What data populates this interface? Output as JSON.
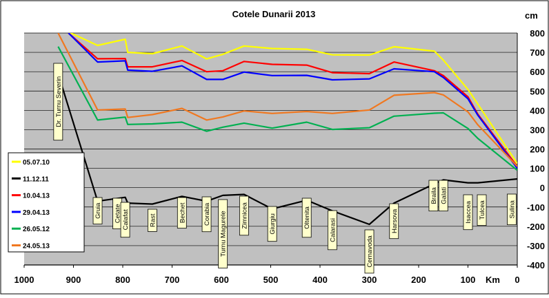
{
  "chart_data": {
    "type": "line",
    "title": "Cotele Dunarii 2013",
    "xlabel": "Km",
    "ylabel": "cm",
    "xlim": [
      1000,
      0
    ],
    "ylim": [
      -400,
      800
    ],
    "x_ticks": [
      1000,
      900,
      800,
      700,
      600,
      500,
      400,
      300,
      200,
      100,
      0
    ],
    "y_ticks": [
      -400,
      -300,
      -200,
      -100,
      0,
      100,
      200,
      300,
      400,
      500,
      600,
      700,
      800
    ],
    "grid": "horizontal",
    "plot_background": "#c0c0c0",
    "legend_position": "left",
    "series": [
      {
        "name": "05.07.10",
        "color": "#ffff00",
        "x": [
          922,
          851,
          795,
          790,
          740,
          680,
          630,
          597,
          554,
          497,
          427,
          375,
          300,
          250,
          168,
          150,
          100,
          80,
          0
        ],
        "values": [
          820,
          736,
          768,
          700,
          693,
          733,
          666,
          690,
          733,
          720,
          716,
          687,
          686,
          729,
          706,
          660,
          508,
          432,
          125
        ]
      },
      {
        "name": "11.12.11",
        "color": "#000000",
        "x": [
          931,
          851,
          795,
          790,
          740,
          680,
          630,
          597,
          554,
          497,
          427,
          375,
          300,
          250,
          168,
          150,
          100,
          80,
          0
        ],
        "values": [
          590,
          -70,
          -50,
          -80,
          -85,
          -45,
          -70,
          -40,
          -35,
          -110,
          -65,
          -120,
          -190,
          -80,
          20,
          40,
          25,
          25,
          45
        ]
      },
      {
        "name": "10.04.13",
        "color": "#ff0000",
        "x": [
          910,
          851,
          795,
          790,
          740,
          680,
          630,
          597,
          554,
          497,
          427,
          375,
          300,
          250,
          168,
          150,
          100,
          80,
          0
        ],
        "values": [
          800,
          667,
          668,
          625,
          625,
          658,
          600,
          605,
          653,
          638,
          634,
          595,
          590,
          650,
          605,
          580,
          470,
          380,
          110
        ]
      },
      {
        "name": "29.04.13",
        "color": "#0000ff",
        "x": [
          910,
          851,
          795,
          790,
          740,
          680,
          630,
          597,
          554,
          497,
          427,
          375,
          300,
          250,
          168,
          150,
          100,
          80,
          0
        ],
        "values": [
          800,
          650,
          656,
          608,
          602,
          630,
          560,
          560,
          598,
          580,
          581,
          558,
          563,
          615,
          600,
          570,
          460,
          375,
          100
        ]
      },
      {
        "name": "26.05.12",
        "color": "#00b050",
        "x": [
          931,
          851,
          795,
          790,
          740,
          680,
          630,
          597,
          554,
          497,
          427,
          375,
          300,
          250,
          168,
          150,
          100,
          80,
          0
        ],
        "values": [
          730,
          350,
          365,
          327,
          330,
          339,
          292,
          313,
          334,
          308,
          339,
          301,
          310,
          370,
          385,
          387,
          306,
          255,
          90
        ]
      },
      {
        "name": "24.05.13",
        "color": "#f07820",
        "x": [
          931,
          851,
          795,
          790,
          740,
          680,
          630,
          597,
          554,
          497,
          427,
          375,
          300,
          250,
          168,
          150,
          100,
          80,
          0
        ],
        "values": [
          800,
          402,
          407,
          363,
          378,
          410,
          350,
          366,
          397,
          384,
          394,
          384,
          402,
          478,
          492,
          480,
          392,
          325,
          110
        ]
      }
    ],
    "station_labels": [
      {
        "name": "Dr. Turnu Severin",
        "x": 931
      },
      {
        "name": "Gruia",
        "x": 851
      },
      {
        "name": "Cetate",
        "x": 811
      },
      {
        "name": "Calafat",
        "x": 795
      },
      {
        "name": "Rast",
        "x": 740
      },
      {
        "name": "Bechet",
        "x": 680
      },
      {
        "name": "Corabia",
        "x": 630
      },
      {
        "name": "Turnu  Magurele",
        "x": 597
      },
      {
        "name": "Zimnicea",
        "x": 554
      },
      {
        "name": "Giurgiu",
        "x": 497
      },
      {
        "name": "Oltenita",
        "x": 427
      },
      {
        "name": "Calarasi",
        "x": 375
      },
      {
        "name": "Cernavoda",
        "x": 300
      },
      {
        "name": "Harsova",
        "x": 250
      },
      {
        "name": "Braila",
        "x": 170
      },
      {
        "name": "Galati",
        "x": 150
      },
      {
        "name": "Isaccea",
        "x": 100
      },
      {
        "name": "Tulcea",
        "x": 72
      },
      {
        "name": "Sulina",
        "x": 0
      }
    ]
  }
}
